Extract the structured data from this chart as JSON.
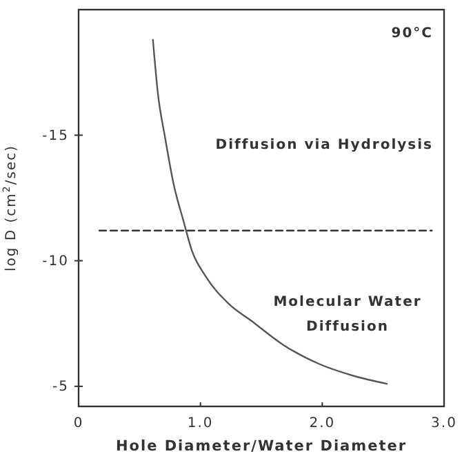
{
  "chart_data": {
    "type": "line",
    "xlabel": "Hole Diameter/Water Diameter",
    "ylabel": "log D (cm$^{2}$/sec)",
    "xlim": [
      0,
      3
    ],
    "xticks": [
      0,
      {
        "value": 1,
        "label": "1.0"
      },
      {
        "value": 2,
        "label": "2.0"
      },
      {
        "value": 3,
        "label": "3.0"
      }
    ],
    "ylim": [
      -4.2,
      -20
    ],
    "yticks": [
      -15,
      -10,
      -5
    ],
    "grid": false,
    "marker": "none",
    "series": [
      {
        "color": "#555555",
        "line_style": "solid",
        "x": [
          0.61,
          0.65,
          0.71,
          0.78,
          0.86,
          0.93,
          1.04,
          1.23,
          1.42,
          1.68,
          1.97,
          2.27,
          2.53
        ],
        "values": [
          -18.8,
          -16.7,
          -14.9,
          -13.05,
          -11.6,
          -10.4,
          -9.4,
          -8.3,
          -7.6,
          -6.65,
          -5.9,
          -5.4,
          -5.1
        ]
      },
      {
        "color": "#333333",
        "line_style": "dashed",
        "x": [
          0.17,
          2.9
        ],
        "values": [
          -11.2,
          -11.2
        ]
      }
    ],
    "annotations": [
      "90°C",
      "Diffusion via Hydrolysis",
      "Molecular Water Diffusion"
    ]
  }
}
